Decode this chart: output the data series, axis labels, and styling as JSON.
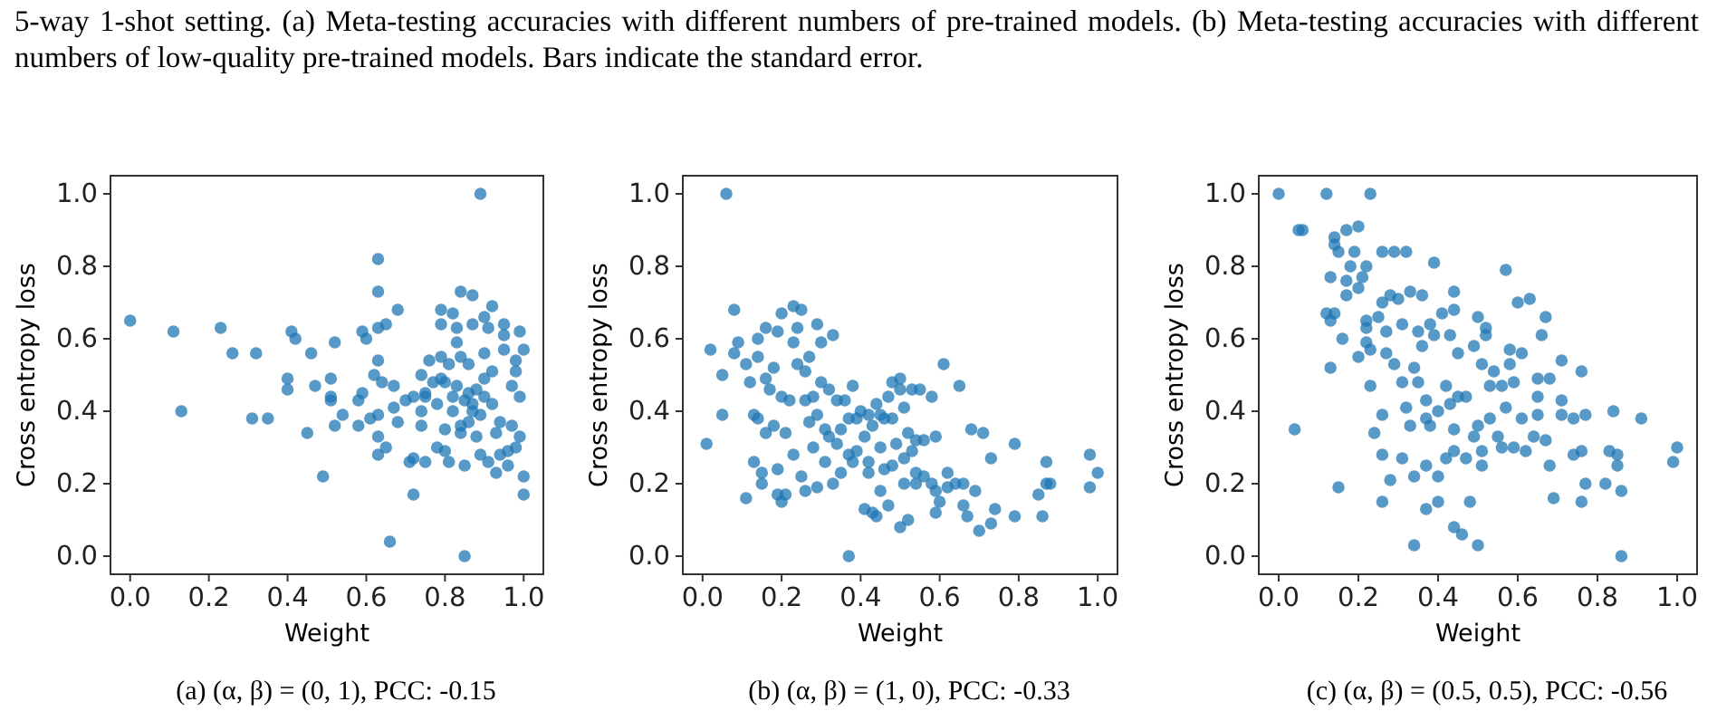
{
  "chart_data": [
    {
      "type": "scatter",
      "title": "(a) (α, β) = (0, 1), PCC: -0.15",
      "xlabel": "Weight",
      "ylabel": "Cross entropy loss",
      "color": "#1f77b4",
      "marker": "circle",
      "annotations": [
        "5-way 1-shot setting. (a) Meta-testing accuracies with different numbers of pre-trained models. (b) Meta-testing accuracies with different numbers of low-quality pre-trained models. Bars indicate the standard error."
      ],
      "xlim": [
        -0.05,
        1.05
      ],
      "ylim": [
        -0.05,
        1.05
      ],
      "xticks": [
        {
          "value": 0,
          "label": "0.0"
        },
        {
          "value": 0.2,
          "label": "0.2"
        },
        {
          "value": 0.4,
          "label": "0.4"
        },
        {
          "value": 0.6,
          "label": "0.6"
        },
        {
          "value": 0.8,
          "label": "0.8"
        },
        {
          "value": 1,
          "label": "1.0"
        }
      ],
      "yticks": [
        {
          "value": 0,
          "label": "0.0"
        },
        {
          "value": 0.2,
          "label": "0.2"
        },
        {
          "value": 0.4,
          "label": "0.4"
        },
        {
          "value": 0.6,
          "label": "0.6"
        },
        {
          "value": 0.8,
          "label": "0.8"
        },
        {
          "value": 1,
          "label": "1.0"
        }
      ],
      "x": [
        0.0,
        0.11,
        0.13,
        0.23,
        0.26,
        0.32,
        0.31,
        0.35,
        0.4,
        0.4,
        0.41,
        0.42,
        0.45,
        0.46,
        0.47,
        0.49,
        0.51,
        0.51,
        0.51,
        0.52,
        0.52,
        0.54,
        0.58,
        0.58,
        0.59,
        0.59,
        0.6,
        0.61,
        0.62,
        0.63,
        0.63,
        0.63,
        0.63,
        0.63,
        0.63,
        0.63,
        0.64,
        0.65,
        0.65,
        0.66,
        0.67,
        0.67,
        0.68,
        0.68,
        0.7,
        0.71,
        0.72,
        0.72,
        0.72,
        0.74,
        0.74,
        0.74,
        0.75,
        0.75,
        0.76,
        0.77,
        0.78,
        0.78,
        0.79,
        0.79,
        0.79,
        0.8,
        0.8,
        0.8,
        0.81,
        0.81,
        0.82,
        0.82,
        0.83,
        0.83,
        0.83,
        0.84,
        0.84,
        0.84,
        0.85,
        0.85,
        0.85,
        0.86,
        0.86,
        0.86,
        0.87,
        0.87,
        0.88,
        0.88,
        0.89,
        0.89,
        0.89,
        0.9,
        0.9,
        0.9,
        0.91,
        0.91,
        0.92,
        0.92,
        0.92,
        0.93,
        0.93,
        0.94,
        0.94,
        0.95,
        0.95,
        0.95,
        0.96,
        0.96,
        0.97,
        0.97,
        0.98,
        0.98,
        0.98,
        0.99,
        0.99,
        0.99,
        1.0,
        1.0,
        1.0,
        0.75,
        0.79,
        0.82,
        0.84,
        0.87,
        0.9,
        0.87
      ],
      "values": [
        0.65,
        0.62,
        0.4,
        0.63,
        0.56,
        0.56,
        0.38,
        0.38,
        0.49,
        0.46,
        0.62,
        0.6,
        0.34,
        0.56,
        0.47,
        0.22,
        0.49,
        0.44,
        0.43,
        0.36,
        0.59,
        0.39,
        0.43,
        0.36,
        0.45,
        0.62,
        0.6,
        0.38,
        0.5,
        0.54,
        0.63,
        0.73,
        0.82,
        0.33,
        0.28,
        0.39,
        0.48,
        0.64,
        0.3,
        0.04,
        0.47,
        0.41,
        0.68,
        0.37,
        0.43,
        0.26,
        0.44,
        0.27,
        0.17,
        0.4,
        0.36,
        0.5,
        0.45,
        0.26,
        0.54,
        0.48,
        0.3,
        0.42,
        0.68,
        0.55,
        0.64,
        0.48,
        0.35,
        0.29,
        0.53,
        0.26,
        0.4,
        0.67,
        0.63,
        0.47,
        0.59,
        0.55,
        0.36,
        0.73,
        0.43,
        0.0,
        0.25,
        0.45,
        0.37,
        0.53,
        0.72,
        0.64,
        0.33,
        0.46,
        1.0,
        0.28,
        0.39,
        0.49,
        0.66,
        0.56,
        0.26,
        0.63,
        0.69,
        0.42,
        0.51,
        0.23,
        0.34,
        0.28,
        0.37,
        0.57,
        0.64,
        0.61,
        0.29,
        0.25,
        0.47,
        0.36,
        0.51,
        0.3,
        0.54,
        0.44,
        0.62,
        0.33,
        0.22,
        0.17,
        0.57,
        0.44,
        0.49,
        0.44,
        0.34,
        0.42,
        0.44,
        0.4
      ]
    },
    {
      "type": "scatter",
      "title": "(b) (α, β) = (1, 0), PCC: -0.33",
      "xlabel": "Weight",
      "ylabel": "Cross entropy loss",
      "color": "#1f77b4",
      "marker": "circle",
      "xlim": [
        -0.05,
        1.05
      ],
      "ylim": [
        -0.05,
        1.05
      ],
      "xticks": [
        {
          "value": 0,
          "label": "0.0"
        },
        {
          "value": 0.2,
          "label": "0.2"
        },
        {
          "value": 0.4,
          "label": "0.4"
        },
        {
          "value": 0.6,
          "label": "0.6"
        },
        {
          "value": 0.8,
          "label": "0.8"
        },
        {
          "value": 1,
          "label": "1.0"
        }
      ],
      "yticks": [
        {
          "value": 0,
          "label": "0.0"
        },
        {
          "value": 0.2,
          "label": "0.2"
        },
        {
          "value": 0.4,
          "label": "0.4"
        },
        {
          "value": 0.6,
          "label": "0.6"
        },
        {
          "value": 0.8,
          "label": "0.8"
        },
        {
          "value": 1,
          "label": "1.0"
        }
      ],
      "x": [
        0.06,
        0.01,
        0.02,
        0.05,
        0.05,
        0.08,
        0.08,
        0.09,
        0.11,
        0.11,
        0.12,
        0.13,
        0.13,
        0.14,
        0.14,
        0.14,
        0.15,
        0.15,
        0.16,
        0.16,
        0.16,
        0.17,
        0.18,
        0.18,
        0.19,
        0.19,
        0.19,
        0.2,
        0.2,
        0.2,
        0.21,
        0.21,
        0.22,
        0.23,
        0.23,
        0.23,
        0.24,
        0.24,
        0.25,
        0.25,
        0.26,
        0.26,
        0.26,
        0.27,
        0.27,
        0.28,
        0.28,
        0.29,
        0.29,
        0.29,
        0.3,
        0.3,
        0.31,
        0.31,
        0.32,
        0.32,
        0.33,
        0.33,
        0.34,
        0.34,
        0.35,
        0.35,
        0.36,
        0.37,
        0.37,
        0.37,
        0.38,
        0.38,
        0.39,
        0.39,
        0.4,
        0.41,
        0.41,
        0.42,
        0.42,
        0.42,
        0.43,
        0.43,
        0.44,
        0.44,
        0.45,
        0.45,
        0.45,
        0.46,
        0.46,
        0.47,
        0.47,
        0.48,
        0.48,
        0.48,
        0.49,
        0.5,
        0.5,
        0.5,
        0.51,
        0.51,
        0.51,
        0.52,
        0.52,
        0.53,
        0.53,
        0.54,
        0.54,
        0.54,
        0.55,
        0.56,
        0.56,
        0.58,
        0.58,
        0.59,
        0.59,
        0.59,
        0.6,
        0.61,
        0.62,
        0.62,
        0.64,
        0.65,
        0.66,
        0.66,
        0.67,
        0.68,
        0.69,
        0.7,
        0.71,
        0.73,
        0.73,
        0.74,
        0.79,
        0.79,
        0.85,
        0.86,
        0.87,
        0.87,
        0.88,
        0.98,
        0.98,
        1.0
      ],
      "values": [
        1.0,
        0.31,
        0.57,
        0.5,
        0.39,
        0.68,
        0.56,
        0.59,
        0.53,
        0.16,
        0.48,
        0.39,
        0.26,
        0.38,
        0.55,
        0.6,
        0.23,
        0.2,
        0.63,
        0.49,
        0.34,
        0.46,
        0.52,
        0.36,
        0.62,
        0.24,
        0.17,
        0.67,
        0.15,
        0.44,
        0.34,
        0.17,
        0.43,
        0.59,
        0.28,
        0.69,
        0.63,
        0.53,
        0.22,
        0.68,
        0.51,
        0.18,
        0.43,
        0.37,
        0.55,
        0.3,
        0.44,
        0.64,
        0.19,
        0.39,
        0.59,
        0.48,
        0.35,
        0.26,
        0.46,
        0.33,
        0.2,
        0.61,
        0.43,
        0.31,
        0.35,
        0.23,
        0.43,
        0.38,
        0.28,
        0.0,
        0.47,
        0.26,
        0.38,
        0.29,
        0.4,
        0.13,
        0.33,
        0.39,
        0.23,
        0.26,
        0.12,
        0.36,
        0.11,
        0.42,
        0.3,
        0.18,
        0.39,
        0.24,
        0.38,
        0.14,
        0.44,
        0.25,
        0.48,
        0.38,
        0.31,
        0.49,
        0.08,
        0.46,
        0.2,
        0.41,
        0.27,
        0.1,
        0.34,
        0.46,
        0.29,
        0.23,
        0.2,
        0.32,
        0.46,
        0.22,
        0.32,
        0.44,
        0.2,
        0.18,
        0.33,
        0.12,
        0.15,
        0.53,
        0.23,
        0.19,
        0.2,
        0.47,
        0.2,
        0.14,
        0.11,
        0.35,
        0.18,
        0.07,
        0.34,
        0.27,
        0.09,
        0.13,
        0.31,
        0.11,
        0.17,
        0.11,
        0.2,
        0.26,
        0.2,
        0.28,
        0.19,
        0.23
      ]
    },
    {
      "type": "scatter",
      "title": "(c) (α, β) = (0.5, 0.5), PCC: -0.56",
      "xlabel": "Weight",
      "ylabel": "Cross entropy loss",
      "color": "#1f77b4",
      "marker": "circle",
      "xlim": [
        -0.05,
        1.05
      ],
      "ylim": [
        -0.05,
        1.05
      ],
      "xticks": [
        {
          "value": 0,
          "label": "0.0"
        },
        {
          "value": 0.2,
          "label": "0.2"
        },
        {
          "value": 0.4,
          "label": "0.4"
        },
        {
          "value": 0.6,
          "label": "0.6"
        },
        {
          "value": 0.8,
          "label": "0.8"
        },
        {
          "value": 1,
          "label": "1.0"
        }
      ],
      "yticks": [
        {
          "value": 0,
          "label": "0.0"
        },
        {
          "value": 0.2,
          "label": "0.2"
        },
        {
          "value": 0.4,
          "label": "0.4"
        },
        {
          "value": 0.6,
          "label": "0.6"
        },
        {
          "value": 0.8,
          "label": "0.8"
        },
        {
          "value": 1,
          "label": "1.0"
        }
      ],
      "x": [
        0.0,
        0.12,
        0.23,
        0.05,
        0.06,
        0.04,
        0.14,
        0.14,
        0.15,
        0.17,
        0.2,
        0.13,
        0.18,
        0.19,
        0.22,
        0.17,
        0.2,
        0.21,
        0.17,
        0.12,
        0.13,
        0.14,
        0.16,
        0.13,
        0.15,
        0.2,
        0.22,
        0.22,
        0.22,
        0.23,
        0.23,
        0.24,
        0.25,
        0.26,
        0.26,
        0.26,
        0.26,
        0.26,
        0.27,
        0.27,
        0.28,
        0.28,
        0.29,
        0.29,
        0.3,
        0.31,
        0.31,
        0.31,
        0.32,
        0.32,
        0.33,
        0.33,
        0.34,
        0.34,
        0.34,
        0.35,
        0.35,
        0.36,
        0.36,
        0.37,
        0.37,
        0.37,
        0.37,
        0.38,
        0.38,
        0.39,
        0.39,
        0.4,
        0.4,
        0.4,
        0.41,
        0.42,
        0.42,
        0.43,
        0.43,
        0.44,
        0.44,
        0.44,
        0.44,
        0.44,
        0.45,
        0.45,
        0.46,
        0.47,
        0.47,
        0.48,
        0.49,
        0.49,
        0.5,
        0.5,
        0.5,
        0.51,
        0.51,
        0.51,
        0.52,
        0.52,
        0.53,
        0.53,
        0.54,
        0.55,
        0.56,
        0.56,
        0.57,
        0.57,
        0.58,
        0.58,
        0.59,
        0.59,
        0.6,
        0.61,
        0.61,
        0.62,
        0.63,
        0.64,
        0.65,
        0.65,
        0.65,
        0.66,
        0.67,
        0.67,
        0.68,
        0.68,
        0.69,
        0.71,
        0.71,
        0.71,
        0.74,
        0.74,
        0.76,
        0.76,
        0.76,
        0.77,
        0.77,
        0.82,
        0.83,
        0.84,
        0.85,
        0.85,
        0.86,
        0.86,
        0.91,
        0.99,
        1.0
      ],
      "values": [
        1.0,
        1.0,
        1.0,
        0.9,
        0.9,
        0.35,
        0.88,
        0.86,
        0.84,
        0.9,
        0.91,
        0.77,
        0.8,
        0.84,
        0.8,
        0.76,
        0.74,
        0.77,
        0.72,
        0.67,
        0.65,
        0.67,
        0.6,
        0.52,
        0.19,
        0.55,
        0.63,
        0.59,
        0.65,
        0.57,
        0.47,
        0.34,
        0.66,
        0.39,
        0.28,
        0.15,
        0.84,
        0.7,
        0.62,
        0.56,
        0.21,
        0.72,
        0.84,
        0.53,
        0.71,
        0.27,
        0.64,
        0.48,
        0.84,
        0.41,
        0.36,
        0.73,
        0.52,
        0.22,
        0.03,
        0.48,
        0.62,
        0.72,
        0.58,
        0.38,
        0.13,
        0.25,
        0.43,
        0.64,
        0.36,
        0.81,
        0.61,
        0.22,
        0.4,
        0.15,
        0.67,
        0.27,
        0.47,
        0.42,
        0.61,
        0.73,
        0.35,
        0.29,
        0.08,
        0.68,
        0.44,
        0.56,
        0.06,
        0.44,
        0.27,
        0.15,
        0.33,
        0.58,
        0.36,
        0.66,
        0.03,
        0.25,
        0.53,
        0.29,
        0.61,
        0.63,
        0.47,
        0.38,
        0.51,
        0.33,
        0.47,
        0.3,
        0.41,
        0.79,
        0.57,
        0.53,
        0.3,
        0.48,
        0.7,
        0.56,
        0.38,
        0.29,
        0.71,
        0.33,
        0.44,
        0.39,
        0.49,
        0.61,
        0.32,
        0.66,
        0.25,
        0.49,
        0.16,
        0.54,
        0.43,
        0.39,
        0.28,
        0.38,
        0.51,
        0.29,
        0.15,
        0.39,
        0.2,
        0.2,
        0.29,
        0.4,
        0.28,
        0.25,
        0.18,
        0.0,
        0.38,
        0.26,
        0.3
      ]
    }
  ]
}
